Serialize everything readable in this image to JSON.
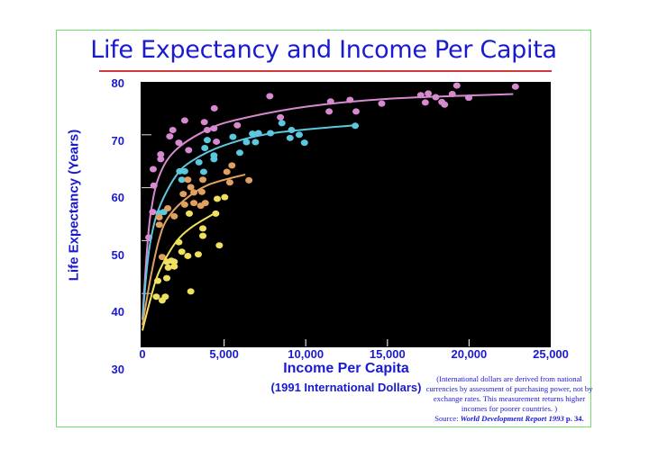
{
  "chart_data": {
    "type": "scatter",
    "title": "Life Expectancy and Income Per Capita",
    "xlabel": "Income Per Capita",
    "xlabel_sub": "(1991 International Dollars)",
    "ylabel": "Life Expectancy (Years)",
    "xlim": [
      0,
      25000
    ],
    "ylim": [
      30,
      80
    ],
    "xticks": [
      "0",
      "5,000",
      "10,000",
      "15,000",
      "20,000",
      "25,000"
    ],
    "yticks": [
      "80",
      "70",
      "60",
      "50",
      "40",
      "30"
    ],
    "background": "#000000",
    "series": [
      {
        "name": "pink",
        "color": "#d88ad0",
        "points": [
          [
            22836,
            79.1
          ],
          [
            19250,
            79.3
          ],
          [
            7800,
            77.3
          ],
          [
            11520,
            76.3
          ],
          [
            12710,
            76.6
          ],
          [
            11430,
            74.4
          ],
          [
            13080,
            74.4
          ],
          [
            14650,
            75.9
          ],
          [
            17040,
            77.5
          ],
          [
            17500,
            77.8
          ],
          [
            17320,
            76.1
          ],
          [
            17960,
            77.1
          ],
          [
            18330,
            76.2
          ],
          [
            18500,
            75.7
          ],
          [
            18970,
            77.7
          ],
          [
            19980,
            77.0
          ],
          [
            4400,
            75.0
          ],
          [
            2590,
            72.7
          ],
          [
            3790,
            72.4
          ],
          [
            1860,
            70.9
          ],
          [
            1675,
            69.7
          ],
          [
            3970,
            70.9
          ],
          [
            4380,
            71.2
          ],
          [
            5810,
            71.8
          ],
          [
            8450,
            73.3
          ],
          [
            2230,
            68.5
          ],
          [
            2830,
            67.1
          ],
          [
            4530,
            68.7
          ],
          [
            1120,
            66.3
          ],
          [
            1120,
            65.4
          ],
          [
            660,
            63.5
          ],
          [
            700,
            60.4
          ],
          [
            630,
            55.4
          ],
          [
            390,
            50.6
          ]
        ],
        "curve": [
          [
            0,
            35
          ],
          [
            250,
            47
          ],
          [
            500,
            55
          ],
          [
            1000,
            62
          ],
          [
            2000,
            67
          ],
          [
            4000,
            71
          ],
          [
            6000,
            73
          ],
          [
            10000,
            75.3
          ],
          [
            15000,
            76.8
          ],
          [
            22700,
            77.7
          ]
        ]
      },
      {
        "name": "cyan",
        "color": "#5cc8e0",
        "points": [
          [
            13030,
            71.7
          ],
          [
            8540,
            72.2
          ],
          [
            9130,
            70.9
          ],
          [
            7840,
            70.3
          ],
          [
            7100,
            70.3
          ],
          [
            6740,
            70.2
          ],
          [
            6370,
            68.6
          ],
          [
            6920,
            68.6
          ],
          [
            9040,
            69.4
          ],
          [
            9600,
            70.0
          ],
          [
            9920,
            68.5
          ],
          [
            5540,
            69.6
          ],
          [
            5960,
            66.6
          ],
          [
            3970,
            69.0
          ],
          [
            3820,
            67.5
          ],
          [
            4380,
            66.1
          ],
          [
            4380,
            65.4
          ],
          [
            3460,
            64.8
          ],
          [
            3750,
            63.0
          ],
          [
            2280,
            63.1
          ],
          [
            2590,
            63.1
          ],
          [
            2410,
            61.5
          ],
          [
            1310,
            55.4
          ],
          [
            1030,
            55.2
          ]
        ],
        "curve": [
          [
            0,
            35
          ],
          [
            250,
            44
          ],
          [
            500,
            50
          ],
          [
            1000,
            56
          ],
          [
            2000,
            62
          ],
          [
            3000,
            65
          ],
          [
            5000,
            68
          ],
          [
            8000,
            70.3
          ],
          [
            13000,
            71.8
          ]
        ]
      },
      {
        "name": "orange",
        "color": "#e0a060",
        "points": [
          [
            5480,
            64.2
          ],
          [
            5170,
            63.0
          ],
          [
            6520,
            61.4
          ],
          [
            5350,
            61.0
          ],
          [
            3700,
            61.5
          ],
          [
            2780,
            61.5
          ],
          [
            2960,
            60.1
          ],
          [
            3640,
            59.2
          ],
          [
            3150,
            59.1
          ],
          [
            2500,
            58.8
          ],
          [
            2590,
            56.8
          ],
          [
            3150,
            57.1
          ],
          [
            3850,
            57.1
          ],
          [
            3570,
            56.6
          ],
          [
            1950,
            54.6
          ],
          [
            1550,
            56.1
          ],
          [
            1030,
            54.4
          ],
          [
            1030,
            53.0
          ],
          [
            1210,
            46.9
          ]
        ],
        "curve": [
          [
            0,
            34
          ],
          [
            500,
            43
          ],
          [
            1000,
            50
          ],
          [
            1500,
            54
          ],
          [
            2500,
            57.5
          ],
          [
            4000,
            60.5
          ],
          [
            6300,
            62.5
          ]
        ]
      },
      {
        "name": "yellow",
        "color": "#f0e060",
        "points": [
          [
            5040,
            58.2
          ],
          [
            4580,
            57.9
          ],
          [
            4490,
            55.1
          ],
          [
            2870,
            55.1
          ],
          [
            3700,
            52.3
          ],
          [
            3700,
            50.9
          ],
          [
            2230,
            49.7
          ],
          [
            4710,
            49.1
          ],
          [
            2410,
            47.9
          ],
          [
            2780,
            47.1
          ],
          [
            3420,
            47.4
          ],
          [
            1770,
            46.2
          ],
          [
            1950,
            46.0
          ],
          [
            1950,
            45.1
          ],
          [
            1490,
            46.0
          ],
          [
            1580,
            44.9
          ],
          [
            1490,
            42.9
          ],
          [
            940,
            42.4
          ],
          [
            2960,
            40.4
          ],
          [
            1400,
            39.4
          ],
          [
            850,
            39.4
          ],
          [
            1210,
            38.7
          ]
        ],
        "curve": [
          [
            0,
            33
          ],
          [
            500,
            39
          ],
          [
            1000,
            44
          ],
          [
            2000,
            49.5
          ],
          [
            3000,
            52.5
          ],
          [
            4500,
            55.3
          ]
        ]
      }
    ],
    "note": "(International dollars are derived from national currencies by assessment of purchasing power, not by exchange rates. This measurement returns higher incomes for poorer countries. )",
    "source_prefix": "Source: ",
    "source_title": "World Development Report 1993",
    "source_suffix": " p. 34."
  }
}
